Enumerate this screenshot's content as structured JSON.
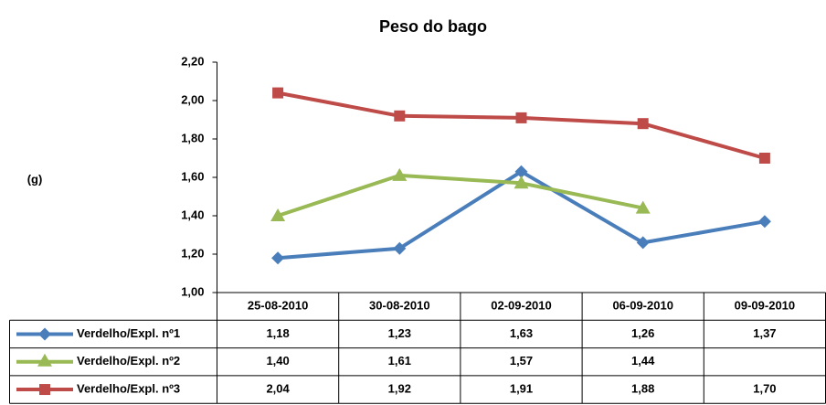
{
  "chart_data": {
    "type": "line",
    "title": "Peso do bago",
    "y_label": "(g)",
    "categories": [
      "25-08-2010",
      "30-08-2010",
      "02-09-2010",
      "06-09-2010",
      "09-09-2010"
    ],
    "ylim": [
      1.0,
      2.2
    ],
    "yticks": [
      {
        "value": 1.0,
        "label": "1,00"
      },
      {
        "value": 1.2,
        "label": "1,20"
      },
      {
        "value": 1.4,
        "label": "1,40"
      },
      {
        "value": 1.6,
        "label": "1,60"
      },
      {
        "value": 1.8,
        "label": "1,80"
      },
      {
        "value": 2.0,
        "label": "2,00"
      },
      {
        "value": 2.2,
        "label": "2,20"
      }
    ],
    "series": [
      {
        "name": "Verdelho/Expl. nº1",
        "color": "#4a7ebb",
        "marker": "diamond",
        "values": [
          1.18,
          1.23,
          1.63,
          1.26,
          1.37
        ],
        "value_labels": [
          "1,18",
          "1,23",
          "1,63",
          "1,26",
          "1,37"
        ]
      },
      {
        "name": "Verdelho/Expl. nº2",
        "color": "#98b954",
        "marker": "triangle",
        "values": [
          1.4,
          1.61,
          1.57,
          1.44,
          null
        ],
        "value_labels": [
          "1,40",
          "1,61",
          "1,57",
          "1,44",
          null
        ]
      },
      {
        "name": "Verdelho/Expl. nº3",
        "color": "#be4b48",
        "marker": "square",
        "values": [
          2.04,
          1.92,
          1.91,
          1.88,
          1.7
        ],
        "value_labels": [
          "2,04",
          "1,92",
          "1,91",
          "1,88",
          "1,70"
        ]
      }
    ]
  }
}
